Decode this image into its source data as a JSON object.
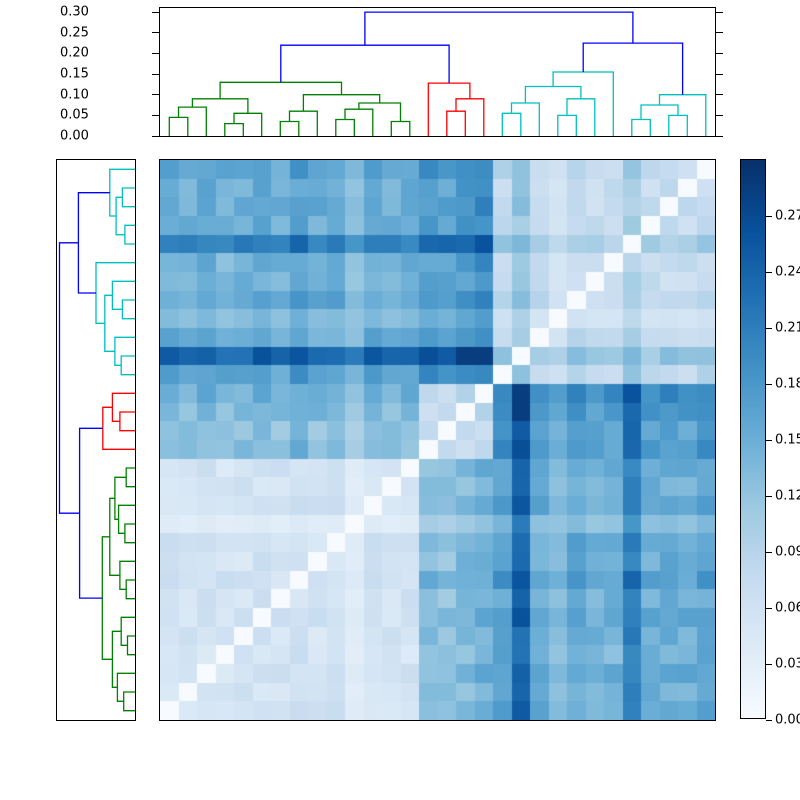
{
  "figure": {
    "description": "Hierarchically clustered distance-matrix heatmap with top and left dendrograms and a vertical colorbar"
  },
  "chart_data": {
    "type": "heatmap",
    "subtype": "clustermap-with-dendrograms",
    "n_leaves": 30,
    "vmin": 0.0,
    "vmax": 0.3,
    "grid": false,
    "diagonal_value": 0.0,
    "row_order_note": "rows are the reversed column leaf order, white diagonal runs top-right to bottom-left",
    "colormap": {
      "name": "Blues",
      "anchors": [
        [
          0.0,
          "#f7fbff"
        ],
        [
          0.125,
          "#deebf7"
        ],
        [
          0.25,
          "#c6dbef"
        ],
        [
          0.375,
          "#9ecae1"
        ],
        [
          0.5,
          "#6baed6"
        ],
        [
          0.625,
          "#4292c6"
        ],
        [
          0.75,
          "#2171b5"
        ],
        [
          0.875,
          "#08519c"
        ],
        [
          1.0,
          "#08306b"
        ]
      ]
    },
    "top_axis": {
      "tick_labels": [
        "0.00",
        "0.05",
        "0.10",
        "0.15",
        "0.20",
        "0.25",
        "0.30"
      ],
      "axis_max": 0.31
    },
    "colorbar": {
      "tick_labels": [
        "0.00",
        "0.03",
        "0.06",
        "0.09",
        "0.12",
        "0.15",
        "0.18",
        "0.21",
        "0.24",
        "0.27"
      ]
    },
    "dendrogram": {
      "colors": {
        "g": "#008000",
        "r": "#ff0000",
        "c": "#00bfbf",
        "b": "#0000ff"
      },
      "axis_max": 0.31,
      "linkage": [
        [
          0,
          1,
          0.045,
          "g"
        ],
        [
          30,
          2,
          0.07,
          "g"
        ],
        [
          3,
          4,
          0.03,
          "g"
        ],
        [
          32,
          5,
          0.055,
          "g"
        ],
        [
          31,
          33,
          0.09,
          "g"
        ],
        [
          6,
          7,
          0.035,
          "g"
        ],
        [
          8,
          35,
          0.06,
          "g"
        ],
        [
          9,
          10,
          0.04,
          "g"
        ],
        [
          37,
          11,
          0.065,
          "g"
        ],
        [
          12,
          13,
          0.035,
          "g"
        ],
        [
          38,
          39,
          0.08,
          "g"
        ],
        [
          36,
          40,
          0.1,
          "g"
        ],
        [
          34,
          41,
          0.13,
          "g"
        ],
        [
          15,
          16,
          0.06,
          "r"
        ],
        [
          43,
          17,
          0.09,
          "r"
        ],
        [
          14,
          44,
          0.128,
          "r"
        ],
        [
          18,
          19,
          0.055,
          "c"
        ],
        [
          46,
          20,
          0.08,
          "c"
        ],
        [
          21,
          22,
          0.05,
          "c"
        ],
        [
          48,
          23,
          0.09,
          "c"
        ],
        [
          47,
          49,
          0.12,
          "c"
        ],
        [
          50,
          24,
          0.155,
          "c"
        ],
        [
          25,
          26,
          0.04,
          "c"
        ],
        [
          27,
          28,
          0.05,
          "c"
        ],
        [
          52,
          53,
          0.075,
          "c"
        ],
        [
          54,
          29,
          0.1,
          "c"
        ],
        [
          51,
          55,
          0.225,
          "b"
        ],
        [
          42,
          45,
          0.22,
          "b"
        ],
        [
          57,
          56,
          0.3,
          "b"
        ]
      ],
      "cluster_sizes": {
        "green": 14,
        "red": 4,
        "cyan": 12
      }
    },
    "leaf_clusters": [
      0,
      0,
      0,
      0,
      0,
      0,
      0,
      0,
      0,
      0,
      0,
      0,
      0,
      0,
      1,
      1,
      1,
      1,
      2,
      2,
      2,
      2,
      2,
      2,
      2,
      2,
      2,
      2,
      2,
      2
    ],
    "matrix_model": {
      "cluster_names": [
        "green",
        "red",
        "cyan"
      ],
      "bases": [
        [
          0.055,
          0.13,
          0.155
        ],
        [
          0.13,
          0.07,
          0.175
        ],
        [
          0.155,
          0.175,
          0.075
        ]
      ],
      "leaf_factors": [
        1.0,
        0.9,
        1.05,
        0.85,
        0.95,
        1.1,
        0.9,
        1.2,
        0.95,
        1.0,
        0.85,
        1.05,
        0.9,
        1.0,
        1.0,
        0.9,
        1.1,
        1.25,
        1.15,
        2.1,
        0.95,
        0.9,
        1.05,
        0.85,
        0.9,
        1.7,
        0.95,
        1.0,
        0.9,
        1.1
      ],
      "jitter_step": 0.003,
      "jitter_mod": 11,
      "clamp_max": 0.285
    }
  }
}
